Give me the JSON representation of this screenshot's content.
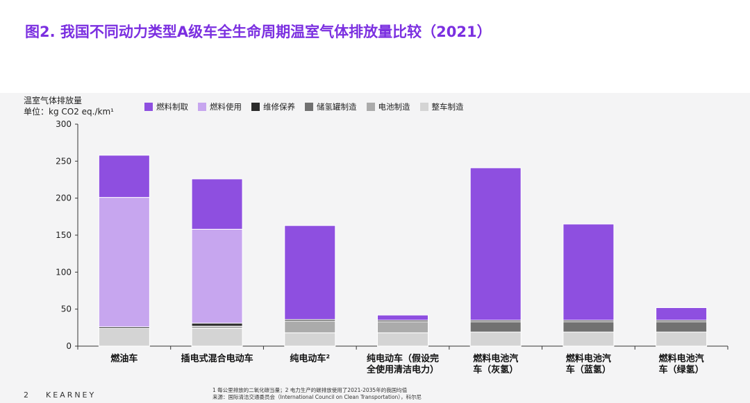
{
  "title": "图2. 我国不同动力类型A级车全生命周期温室气体排放量比较（2021）",
  "page_number": "2",
  "brand": "KEARNEY",
  "footnotes": [
    "1 每公里排放的二氧化碳当量；2  电力生产的碳排放使用了2021-2035年的我国均值",
    "来源：国际清洁交通委员会（International Council on Clean Transportation），科尔尼"
  ],
  "colors": {
    "fuel_production": "#8e4fe0",
    "fuel_use": "#c7a6ef",
    "maintenance": "#2b2b2b",
    "tank_manufacturing": "#717171",
    "battery_manufacturing": "#ababab",
    "vehicle_manufacturing": "#d4d4d4"
  },
  "chart_data": {
    "type": "bar",
    "stacked": true,
    "ylabel": "温室气体排放量",
    "yunit": "单位：kg CO2 eq./km¹",
    "ylim": [
      0,
      300
    ],
    "yticks": [
      0,
      50,
      100,
      150,
      200,
      250,
      300
    ],
    "categories": [
      "燃油车",
      "插电式混合电动车",
      "纯电动车²",
      "纯电动车（假设完全使用清洁电力）",
      "燃料电池汽车（灰氢）",
      "燃料电池汽车（蓝氢）",
      "燃料电池汽车（绿氢）"
    ],
    "category_lines": [
      [
        "燃油车"
      ],
      [
        "插电式混合电动车"
      ],
      [
        "纯电动车²"
      ],
      [
        "纯电动车（假设完",
        "全使用清洁电力）"
      ],
      [
        "燃料电池汽",
        "车（灰氢）"
      ],
      [
        "燃料电池汽",
        "车（蓝氢）"
      ],
      [
        "燃料电池汽",
        "车（绿氢）"
      ]
    ],
    "legend_position": "top",
    "series": [
      {
        "name": "整车制造",
        "color_key": "vehicle_manufacturing",
        "values": [
          24,
          24,
          18,
          18,
          19,
          19,
          19
        ]
      },
      {
        "name": "电池制造",
        "color_key": "battery_manufacturing",
        "values": [
          0,
          3,
          16,
          15,
          0,
          0,
          0
        ]
      },
      {
        "name": "储氢罐制造",
        "color_key": "tank_manufacturing",
        "values": [
          0,
          0,
          0,
          0,
          14,
          14,
          14
        ]
      },
      {
        "name": "维修保养",
        "color_key": "maintenance",
        "values": [
          2,
          4,
          2,
          2,
          2,
          2,
          2
        ]
      },
      {
        "name": "燃料使用",
        "color_key": "fuel_use",
        "values": [
          175,
          127,
          0,
          0,
          0,
          0,
          0
        ]
      },
      {
        "name": "燃料制取",
        "color_key": "fuel_production",
        "values": [
          57,
          68,
          127,
          7,
          206,
          130,
          17
        ]
      }
    ],
    "legend_order": [
      "燃料制取",
      "燃料使用",
      "维修保养",
      "储氢罐制造",
      "电池制造",
      "整车制造"
    ]
  }
}
